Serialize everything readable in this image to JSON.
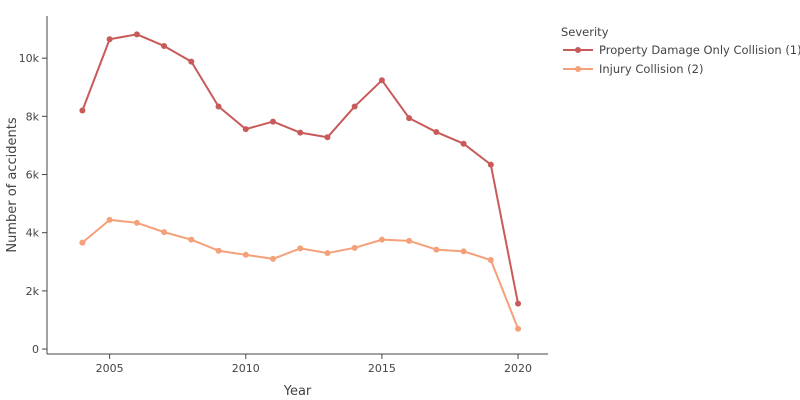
{
  "chart_data": {
    "type": "line",
    "title": "",
    "xlabel": "Year",
    "ylabel": "Number of accidents",
    "x": [
      2004,
      2005,
      2006,
      2007,
      2008,
      2009,
      2010,
      2011,
      2012,
      2013,
      2014,
      2015,
      2016,
      2017,
      2018,
      2019,
      2020
    ],
    "xlim": [
      2002.7,
      2021.1
    ],
    "ylim": [
      -170,
      11450
    ],
    "xticks": [
      2005,
      2010,
      2015,
      2020
    ],
    "xtick_labels": [
      "2005",
      "2010",
      "2015",
      "2020"
    ],
    "yticks": [
      0,
      2000,
      4000,
      6000,
      8000,
      10000
    ],
    "ytick_labels": [
      "0",
      "2k",
      "4k",
      "6k",
      "8k",
      "10k"
    ],
    "grid": false,
    "legend": {
      "title": "Severity",
      "position": "top-right, outside plot"
    },
    "series": [
      {
        "name": "Property Damage Only Collision (1)",
        "color": "#c85a5a",
        "values": [
          8200,
          10650,
          10820,
          10420,
          9880,
          8340,
          7560,
          7820,
          7440,
          7280,
          8340,
          9240,
          7940,
          7460,
          7060,
          6340,
          1560
        ]
      },
      {
        "name": "Injury Collision (2)",
        "color": "#f4a079",
        "values": [
          3660,
          4440,
          4340,
          4020,
          3760,
          3380,
          3240,
          3100,
          3460,
          3300,
          3480,
          3760,
          3720,
          3420,
          3360,
          3060,
          700
        ]
      }
    ]
  }
}
